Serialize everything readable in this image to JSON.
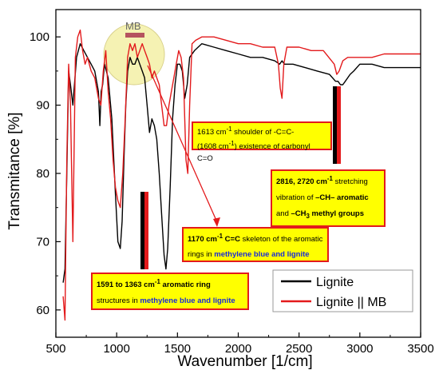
{
  "chart_data": {
    "type": "line",
    "xlabel": "Wavenumber [1/cm]",
    "ylabel": "Transmitance [%]",
    "xlim": [
      500,
      3500
    ],
    "ylim": [
      56,
      104
    ],
    "xticks": [
      500,
      1000,
      1500,
      2000,
      2500,
      3000,
      3500
    ],
    "yticks": [
      60,
      70,
      80,
      90,
      100
    ],
    "grid": false,
    "legend_position": "bottom-right",
    "series": [
      {
        "name": "Lignite",
        "color": "#000000",
        "x": [
          560,
          575,
          590,
          605,
          620,
          640,
          670,
          700,
          730,
          760,
          790,
          820,
          850,
          862,
          872,
          885,
          900,
          930,
          960,
          990,
          1010,
          1030,
          1045,
          1060,
          1075,
          1090,
          1110,
          1130,
          1150,
          1170,
          1190,
          1210,
          1230,
          1250,
          1270,
          1290,
          1310,
          1330,
          1350,
          1370,
          1390,
          1405,
          1420,
          1440,
          1460,
          1480,
          1500,
          1520,
          1540,
          1560,
          1580,
          1600,
          1640,
          1700,
          1800,
          1900,
          2000,
          2100,
          2200,
          2300,
          2340,
          2360,
          2380,
          2450,
          2550,
          2650,
          2750,
          2800,
          2820,
          2840,
          2860,
          2880,
          2920,
          2950,
          3000,
          3100,
          3200,
          3300,
          3400,
          3500
        ],
        "values": [
          64,
          66,
          80,
          95,
          93,
          90,
          97,
          99,
          98,
          97,
          96,
          95,
          92,
          87,
          92,
          93,
          96,
          94,
          88,
          77,
          70,
          69,
          73,
          82,
          90,
          95,
          97,
          96,
          96,
          97,
          96,
          95,
          94,
          90,
          86,
          88,
          87,
          85,
          80,
          74,
          68,
          66,
          69,
          78,
          88,
          93,
          96,
          96,
          95,
          91,
          93,
          97,
          98,
          99,
          98.5,
          98,
          97.5,
          97,
          97,
          96.5,
          96,
          96.5,
          96,
          96,
          95.5,
          95,
          94.5,
          93.5,
          93.5,
          93,
          93,
          93.5,
          94.5,
          95,
          96,
          96,
          95.5,
          95.5,
          95.5,
          95.5
        ]
      },
      {
        "name": "Lignite || MB",
        "color": "#e31a1c",
        "x": [
          560,
          575,
          590,
          605,
          620,
          640,
          660,
          680,
          700,
          720,
          740,
          760,
          790,
          820,
          850,
          870,
          890,
          910,
          930,
          950,
          970,
          990,
          1010,
          1030,
          1050,
          1070,
          1090,
          1110,
          1130,
          1150,
          1170,
          1190,
          1210,
          1230,
          1250,
          1270,
          1290,
          1310,
          1330,
          1350,
          1370,
          1390,
          1410,
          1430,
          1450,
          1470,
          1490,
          1510,
          1530,
          1550,
          1570,
          1585,
          1600,
          1620,
          1650,
          1700,
          1800,
          1900,
          2000,
          2100,
          2200,
          2300,
          2330,
          2345,
          2360,
          2375,
          2400,
          2500,
          2600,
          2700,
          2790,
          2810,
          2830,
          2860,
          2900,
          3000,
          3100,
          3200,
          3300,
          3400,
          3500
        ],
        "values": [
          62,
          58.5,
          82,
          96,
          90,
          70,
          97,
          100,
          101,
          98,
          96,
          97,
          95,
          94,
          91,
          90,
          95,
          98,
          92,
          88,
          82,
          78,
          76,
          75,
          80,
          88,
          97,
          99,
          98,
          99,
          97,
          98,
          99,
          98,
          97,
          96,
          94,
          95,
          94,
          93,
          90,
          87,
          87,
          90,
          92,
          94,
          96,
          98,
          97,
          94,
          82,
          80,
          90,
          99,
          99.5,
          100,
          100,
          99.5,
          99,
          99,
          98.5,
          98.5,
          96,
          92.5,
          91,
          96,
          98.5,
          98.5,
          98,
          98,
          96,
          94.5,
          95,
          96.5,
          97,
          97,
          97,
          97.5,
          97.5,
          97.5,
          97.5
        ]
      }
    ]
  },
  "annotations": {
    "mb_circle_label": "MB",
    "a1_line1": "1613 cm",
    "a1_line1_sup": "-1",
    "a1_line1_rest": " shoulder of -C=C-",
    "a1_line2": "(1608 cm",
    "a1_line2_sup": "-1",
    "a1_line2_rest": ")  existence of carbonyl C=O",
    "a2_bold1": "2816, 2720 cm",
    "a2_bold1_sup": "-1",
    "a2_text1": "  stretching",
    "a2_text2": "vibration of ",
    "a2_bold2": "–CH– aromatic",
    "a2_text3": "and ",
    "a2_bold3": "–CH",
    "a2_bold3_sub": "3",
    "a2_bold3_rest": " methyl groups",
    "a3_bold1": "1170 cm",
    "a3_bold1_sup": "-1",
    "a3_bold2": " C=C",
    "a3_text1": " skeleton of the aromatic",
    "a3_text2": "rings in ",
    "a3_blue": "methylene blue and lignite",
    "a4_bold1": "1591 to 1363 cm",
    "a4_bold1_sup": "-1",
    "a4_bold2": " aromatic ring",
    "a4_text2": "structures  in ",
    "a4_blue": "methylene blue and lignite"
  },
  "colors": {
    "lignite": "#000000",
    "lignite_mb": "#e31a1c",
    "annotation_fill": "#ffff00",
    "annotation_border": "#e31a1c",
    "highlight_circle": "#f3f0a6",
    "mb_bar": "#b5535f"
  }
}
